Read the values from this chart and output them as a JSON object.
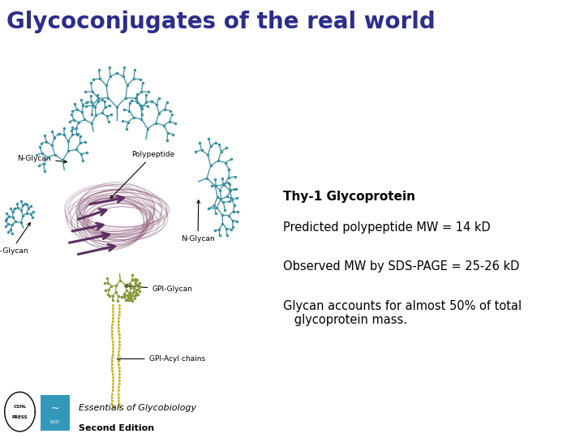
{
  "title": "Glycoconjugates of the real world",
  "title_color": "#2d2d8c",
  "title_fontsize": 20,
  "bg_color": "#ffffff",
  "subtitle": "Thy-1 Glycoprotein",
  "subtitle_fontsize": 11,
  "subtitle_color": "#000000",
  "text_lines": [
    "Predicted polypeptide MW = 14 kD",
    "Observed MW by SDS-PAGE = 25-26 kD",
    "Glycan accounts for almost 50% of total\n   glycoprotein mass."
  ],
  "text_fontsize": 10.5,
  "text_color": "#000000",
  "footer_italic": "Essentials of Glycobiology",
  "footer_bold": "Second Edition",
  "footer_fontsize": 8,
  "teal": "#3a8fa0",
  "purple": "#8b5a7a",
  "dark_purple": "#5c3060",
  "olive": "#8a9a3c",
  "yellow": "#c8b830"
}
